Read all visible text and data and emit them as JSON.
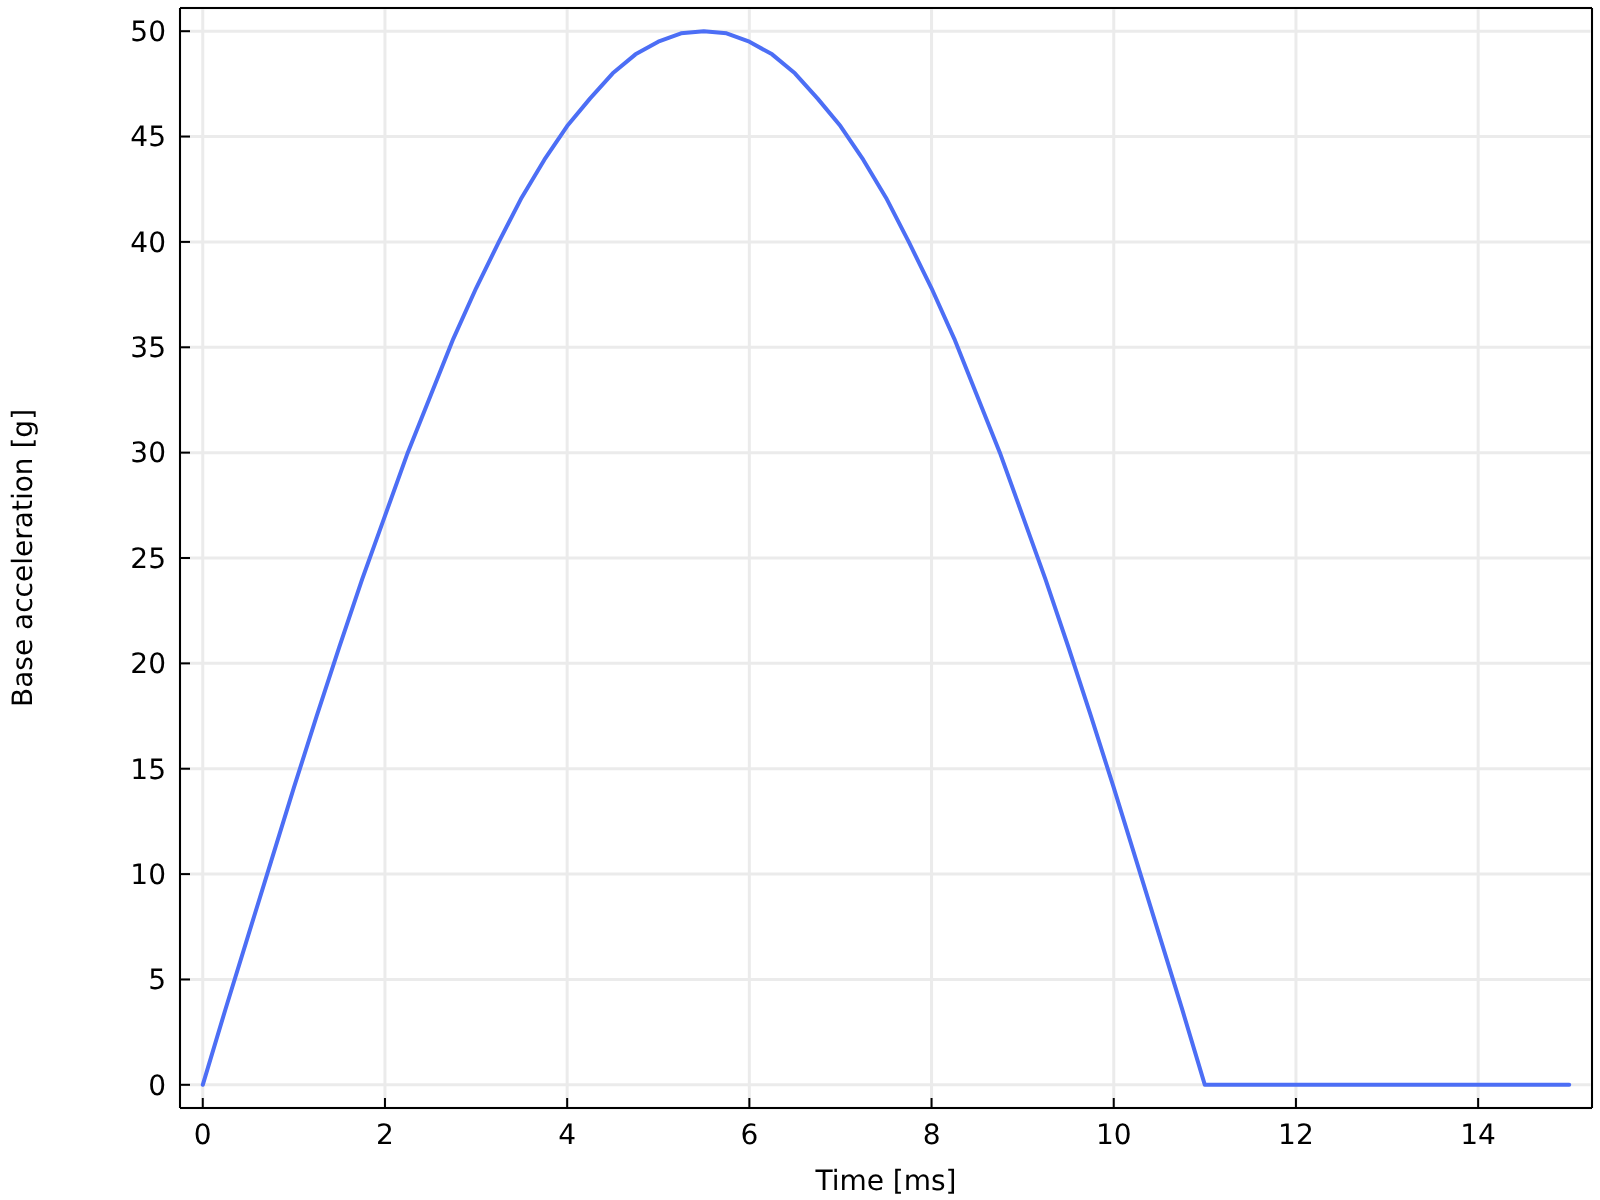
{
  "chart_data": {
    "type": "line",
    "xlabel": "Time [ms]",
    "ylabel": "Base acceleration [g]",
    "x": [
      0,
      0.25,
      0.5,
      0.75,
      1,
      1.25,
      1.5,
      1.75,
      2,
      2.25,
      2.5,
      2.75,
      3,
      3.25,
      3.5,
      3.75,
      4,
      4.25,
      4.5,
      4.75,
      5,
      5.25,
      5.5,
      5.75,
      6,
      6.25,
      6.5,
      6.75,
      7,
      7.25,
      7.5,
      7.75,
      8,
      8.25,
      8.5,
      8.75,
      9,
      9.25,
      9.5,
      9.75,
      10,
      10.25,
      10.5,
      10.75,
      11,
      15
    ],
    "values": [
      0,
      3.6,
      7.1,
      10.6,
      14.1,
      17.5,
      20.8,
      24.0,
      27.0,
      30.0,
      32.7,
      35.4,
      37.8,
      40.0,
      42.1,
      43.9,
      45.5,
      46.8,
      48.0,
      48.9,
      49.5,
      49.9,
      50,
      49.9,
      49.5,
      48.9,
      48.0,
      46.8,
      45.5,
      43.9,
      42.1,
      40.0,
      37.8,
      35.4,
      32.7,
      30.0,
      27.0,
      24.0,
      20.8,
      17.5,
      14.1,
      10.6,
      7.1,
      3.6,
      0,
      0
    ],
    "color": "#4c6ef5",
    "xlim": [
      -0.25,
      15.25
    ],
    "ylim": [
      -1.1,
      51.1
    ],
    "xticks": [
      0,
      2,
      4,
      6,
      8,
      10,
      12,
      14
    ],
    "yticks": [
      0,
      5,
      10,
      15,
      20,
      25,
      30,
      35,
      40,
      45,
      50
    ],
    "grid": true
  }
}
